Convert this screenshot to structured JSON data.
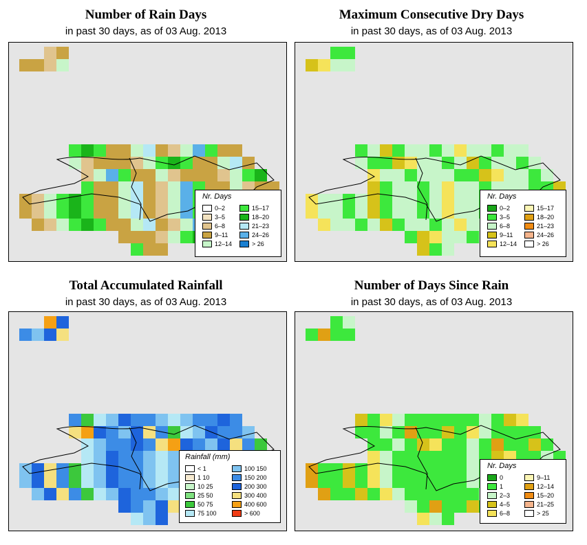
{
  "panels": [
    {
      "id": "rain-days",
      "title": "Number of Rain Days",
      "subtitle": "in past 30 days, as of  03 Aug. 2013",
      "legend_title": "Nr. Days",
      "legend_items": [
        {
          "label": "0–2",
          "color": "#ffffff"
        },
        {
          "label": "3–5",
          "color": "#f3e3c2"
        },
        {
          "label": "6–8",
          "color": "#e0c48e"
        },
        {
          "label": "9–11",
          "color": "#c9a343"
        },
        {
          "label": "12–14",
          "color": "#c7f5c9"
        },
        {
          "label": "15–17",
          "color": "#3de83d"
        },
        {
          "label": "18–20",
          "color": "#1ab41a"
        },
        {
          "label": "21–23",
          "color": "#b5e8f5"
        },
        {
          "label": "24–26",
          "color": "#5ab0e8"
        },
        {
          "label": "> 26",
          "color": "#1a7fd0"
        }
      ]
    },
    {
      "id": "dry-days",
      "title": "Maximum Consecutive Dry Days",
      "subtitle": "in past 30 days, as of  03 Aug. 2013",
      "legend_title": "Nr. Days",
      "legend_items": [
        {
          "label": "0–2",
          "color": "#1aa61a"
        },
        {
          "label": "3–5",
          "color": "#3de83d"
        },
        {
          "label": "6–8",
          "color": "#c7f5c9"
        },
        {
          "label": "9–11",
          "color": "#d6c21a"
        },
        {
          "label": "12–14",
          "color": "#f5e35a"
        },
        {
          "label": "15–17",
          "color": "#fbf5b4"
        },
        {
          "label": "18–20",
          "color": "#e0a014"
        },
        {
          "label": "21–23",
          "color": "#f08c14"
        },
        {
          "label": "24–26",
          "color": "#f5b48c"
        },
        {
          "label": "> 26",
          "color": "#ffffff"
        }
      ]
    },
    {
      "id": "rainfall",
      "title": "Total Accumulated Rainfall",
      "subtitle": "in past 30 days, as of  03 Aug. 2013",
      "legend_title": "Rainfall (mm)",
      "legend_items": [
        {
          "label": "<   1",
          "color": "#ffffff"
        },
        {
          "label": "1   10",
          "color": "#f7ead0"
        },
        {
          "label": "10   25",
          "color": "#c7f5c9"
        },
        {
          "label": "25   50",
          "color": "#7fe07f"
        },
        {
          "label": "50   75",
          "color": "#3cc83c"
        },
        {
          "label": "75   100",
          "color": "#b5e8f5"
        },
        {
          "label": "100   150",
          "color": "#7fc3f0"
        },
        {
          "label": "150   200",
          "color": "#3c8ce6"
        },
        {
          "label": "200   300",
          "color": "#1e64dc"
        },
        {
          "label": "300   400",
          "color": "#f5e07f"
        },
        {
          "label": "400   600",
          "color": "#f5a014"
        },
        {
          "label": "> 600",
          "color": "#f03c14"
        }
      ]
    },
    {
      "id": "days-since-rain",
      "title": "Number of Days Since Rain",
      "subtitle": "in past 30 days, as of  03 Aug. 2013",
      "legend_title": "Nr. Days",
      "legend_items": [
        {
          "label": "0",
          "color": "#1aa61a"
        },
        {
          "label": "1",
          "color": "#3de83d"
        },
        {
          "label": "2–3",
          "color": "#c7f5c9"
        },
        {
          "label": "4–5",
          "color": "#d6c21a"
        },
        {
          "label": "6–8",
          "color": "#f5e35a"
        },
        {
          "label": "9–11",
          "color": "#fbf5b4"
        },
        {
          "label": "12–14",
          "color": "#e0a014"
        },
        {
          "label": "15–20",
          "color": "#f08c14"
        },
        {
          "label": "21–25",
          "color": "#f5b48c"
        },
        {
          "label": "> 25",
          "color": "#ffffff"
        }
      ]
    }
  ]
}
